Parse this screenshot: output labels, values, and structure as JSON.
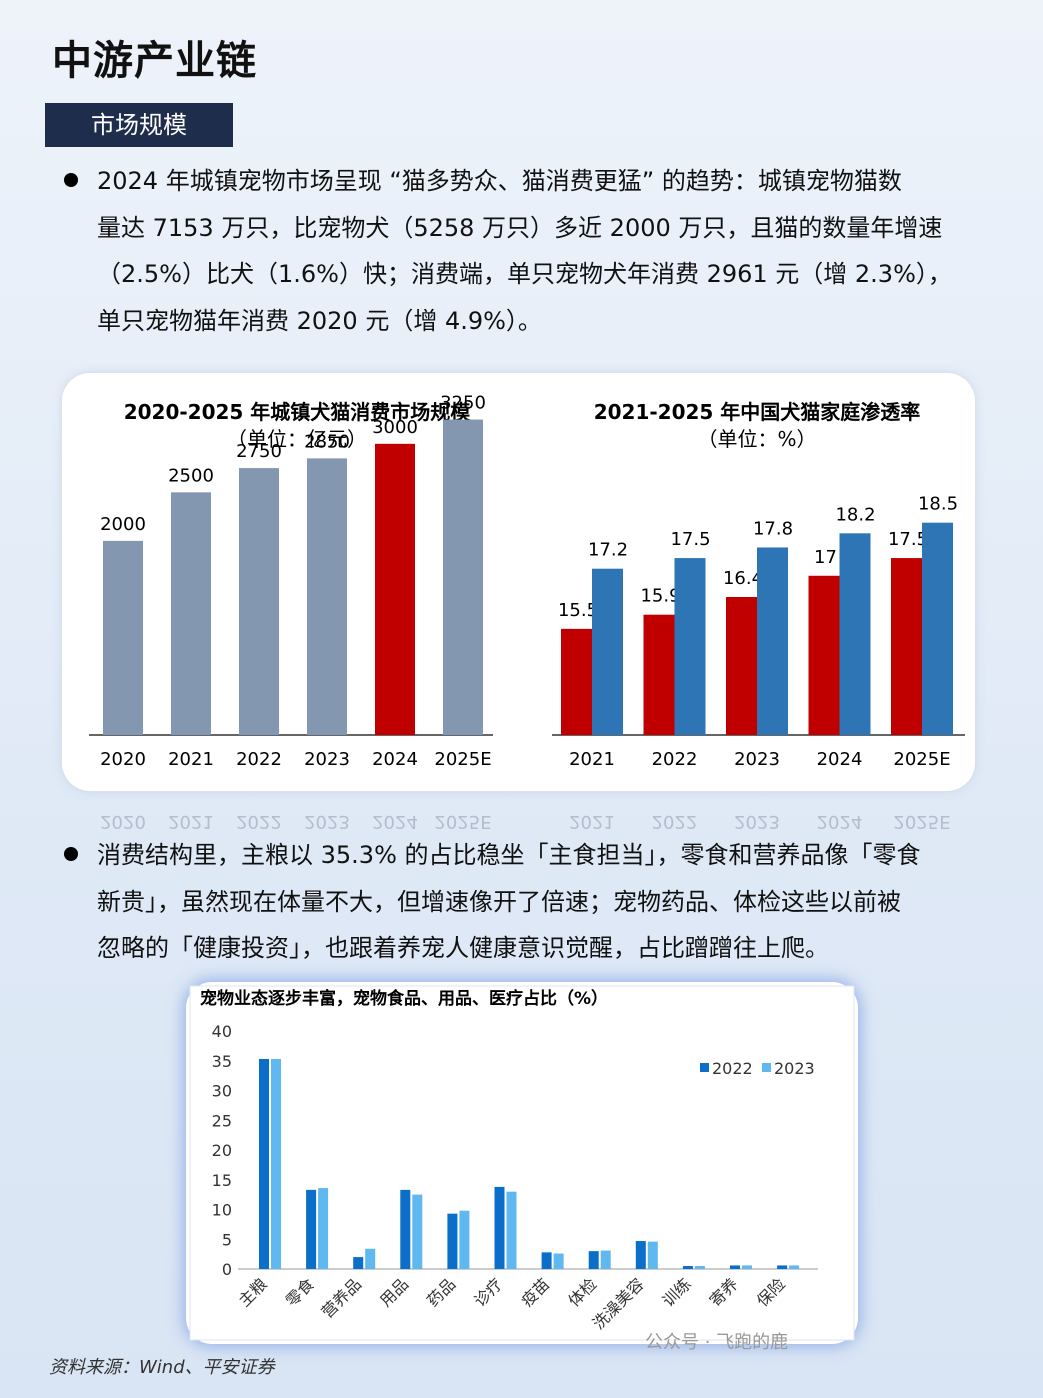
{
  "page": {
    "title": "中游产业链",
    "section_tag": "市场规模",
    "bullet1_lines": [
      "2024 年城镇宠物市场呈现 “猫多势众、猫消费更猛” 的趋势：城镇宠物猫数",
      "量达 7153 万只，比宠物犬（5258 万只）多近 2000 万只，且猫的数量年增速",
      "（2.5%）比犬（1.6%）快；消费端，单只宠物犬年消费 2961 元（增 2.3%），",
      "单只宠物猫年消费 2020 元（增 4.9%）。"
    ],
    "bullet2_lines": [
      "消费结构里，主粮以 35.3% 的占比稳坐「主食担当」，零食和营养品像「零食",
      "新贵」，虽然现在体量不大，但增速像开了倍速；宠物药品、体检这些以前被",
      "忽略的「健康投资」，也跟着养宠人健康意识觉醒，占比蹭蹭往上爬。"
    ],
    "source": "资料来源：Wind、平安证券",
    "watermark": "公众号 · 飞跑的鹿"
  },
  "chart_data": [
    {
      "type": "bar",
      "title": "2020-2025 年城镇犬猫消费市场规模",
      "subtitle": "（单位：亿元）",
      "categories": [
        "2020",
        "2021",
        "2022",
        "2023",
        "2024",
        "2025E"
      ],
      "values": [
        2000,
        2500,
        2750,
        2850,
        3000,
        3250
      ],
      "ylim": [
        0,
        3400
      ],
      "colors": {
        "default": "#8497b0",
        "highlight": "#c00000"
      },
      "highlight_category": "2024"
    },
    {
      "type": "bar",
      "title": "2021-2025 年中国犬猫家庭渗透率",
      "subtitle": "（单位：%）",
      "categories": [
        "2021",
        "2022",
        "2023",
        "2024",
        "2025E"
      ],
      "series": [
        {
          "values": [
            15.5,
            15.9,
            16.4,
            17,
            17.5
          ],
          "color": "#c00000"
        },
        {
          "values": [
            17.2,
            17.5,
            17.8,
            18.2,
            18.5
          ],
          "color": "#2e75b6"
        }
      ],
      "ylim": [
        12.5,
        19.0
      ]
    },
    {
      "type": "bar",
      "title": "宠物业态逐步丰富，宠物食品、用品、医疗占比（%）",
      "categories": [
        "主粮",
        "零食",
        "营养品",
        "用品",
        "药品",
        "诊疗",
        "疫苗",
        "体检",
        "洗澡美容",
        "训练",
        "寄养",
        "保险"
      ],
      "series": [
        {
          "name": "2022",
          "values": [
            35.3,
            13.3,
            2.0,
            13.3,
            9.3,
            13.8,
            2.8,
            3.0,
            4.7,
            0.5,
            0.6,
            0.6
          ],
          "color": "#0b6fc9"
        },
        {
          "name": "2023",
          "values": [
            35.3,
            13.6,
            3.4,
            12.5,
            9.8,
            13.0,
            2.6,
            3.1,
            4.6,
            0.5,
            0.6,
            0.6
          ],
          "color": "#5fb8f0"
        }
      ],
      "yticks": [
        0,
        5,
        10,
        15,
        20,
        25,
        30,
        35,
        40
      ],
      "ylim": [
        0,
        40
      ],
      "legend": "top-right"
    }
  ]
}
